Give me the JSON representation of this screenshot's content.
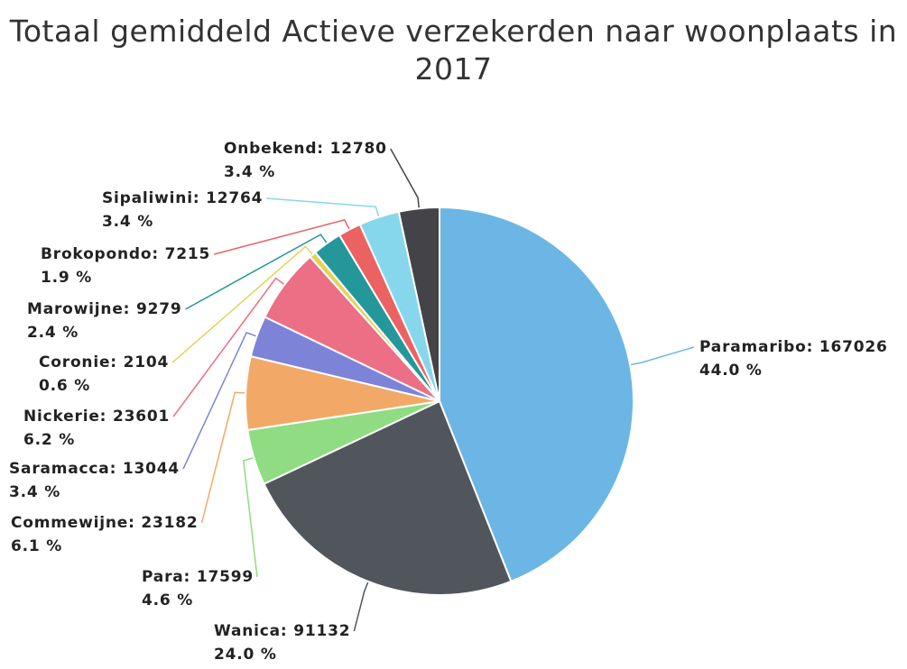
{
  "chart_data": {
    "type": "pie",
    "title": "Totaal gemiddeld Actieve verzekerden naar woonplaats in 2017",
    "labels": [
      "Paramaribo: 167026",
      "Wanica: 91132",
      "Para: 17599",
      "Commewijne: 23182",
      "Saramacca: 13044",
      "Nickerie: 23601",
      "Coronie: 2104",
      "Marowijne: 9279",
      "Brokopondo: 7215",
      "Sipaliwini: 12764",
      "Onbekend: 12780"
    ],
    "values": [
      167026,
      91132,
      17599,
      23182,
      13044,
      23601,
      2104,
      9279,
      7215,
      12764,
      12780
    ],
    "percentages": [
      {
        "value": 44.0,
        "label": "44.0 %"
      },
      {
        "value": 24.0,
        "label": "24.0 %"
      },
      {
        "value": 4.6,
        "label": "4.6 %"
      },
      {
        "value": 6.1,
        "label": "6.1 %"
      },
      {
        "value": 3.4,
        "label": "3.4 %"
      },
      {
        "value": 6.2,
        "label": "6.2 %"
      },
      {
        "value": 0.6,
        "label": "0.6 %"
      },
      {
        "value": 2.4,
        "label": "2.4 %"
      },
      {
        "value": 1.9,
        "label": "1.9 %"
      },
      {
        "value": 3.4,
        "label": "3.4 %"
      },
      {
        "value": 3.4,
        "label": "3.4 %"
      }
    ],
    "colors": [
      "#6cb6e5",
      "#51565c",
      "#8fdc82",
      "#f2a968",
      "#7d83d6",
      "#ec6f85",
      "#e3d35a",
      "#24979a",
      "#ec6262",
      "#86d7eb",
      "#434348"
    ]
  }
}
